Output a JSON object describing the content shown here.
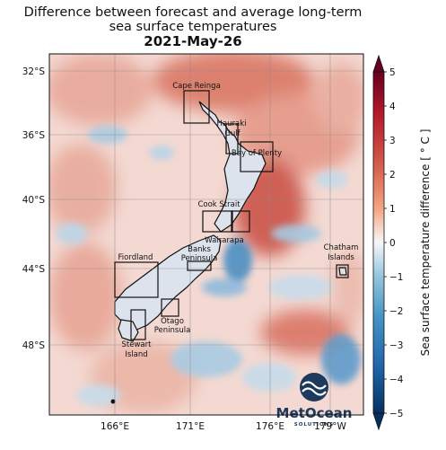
{
  "title": {
    "line1": "Difference between forecast and average long-term",
    "line2": "sea surface temperatures",
    "date": "2021-May-26"
  },
  "map": {
    "lat_ticks": [
      "32°S",
      "36°S",
      "40°S",
      "44°S",
      "48°S"
    ],
    "lon_ticks": [
      "166°E",
      "171°E",
      "176°E",
      "179°W"
    ],
    "regions": {
      "cape_reinga": "Cape Reinga",
      "hauraki_gulf_1": "Hauraki",
      "hauraki_gulf_2": "Gulf",
      "bay_of_plenty": "Bay of Plenty",
      "cook_strait": "Cook Strait",
      "wairarapa": "Wairarapa",
      "banks_peninsula_1": "Banks",
      "banks_peninsula_2": "Peninsula",
      "fiordland": "Fiordland",
      "otago_peninsula_1": "Otago",
      "otago_peninsula_2": "Peninsula",
      "stewart_island_1": "Stewart",
      "stewart_island_2": "Island",
      "chatham_islands_1": "Chatham",
      "chatham_islands_2": "Islands"
    }
  },
  "colorbar": {
    "label": "Sea surface temperature difference [ ° C ]",
    "ticks": [
      "5",
      "4",
      "3",
      "2",
      "1",
      "0",
      "−1",
      "−2",
      "−3",
      "−4",
      "−5"
    ],
    "colors": {
      "max": "#67001f",
      "warm": "#d6604d",
      "neutral": "#f7f7f7",
      "cool": "#4393c3",
      "min": "#053061"
    }
  },
  "logo": {
    "name": "MetOcean",
    "tagline": "SOLUTIONS"
  }
}
